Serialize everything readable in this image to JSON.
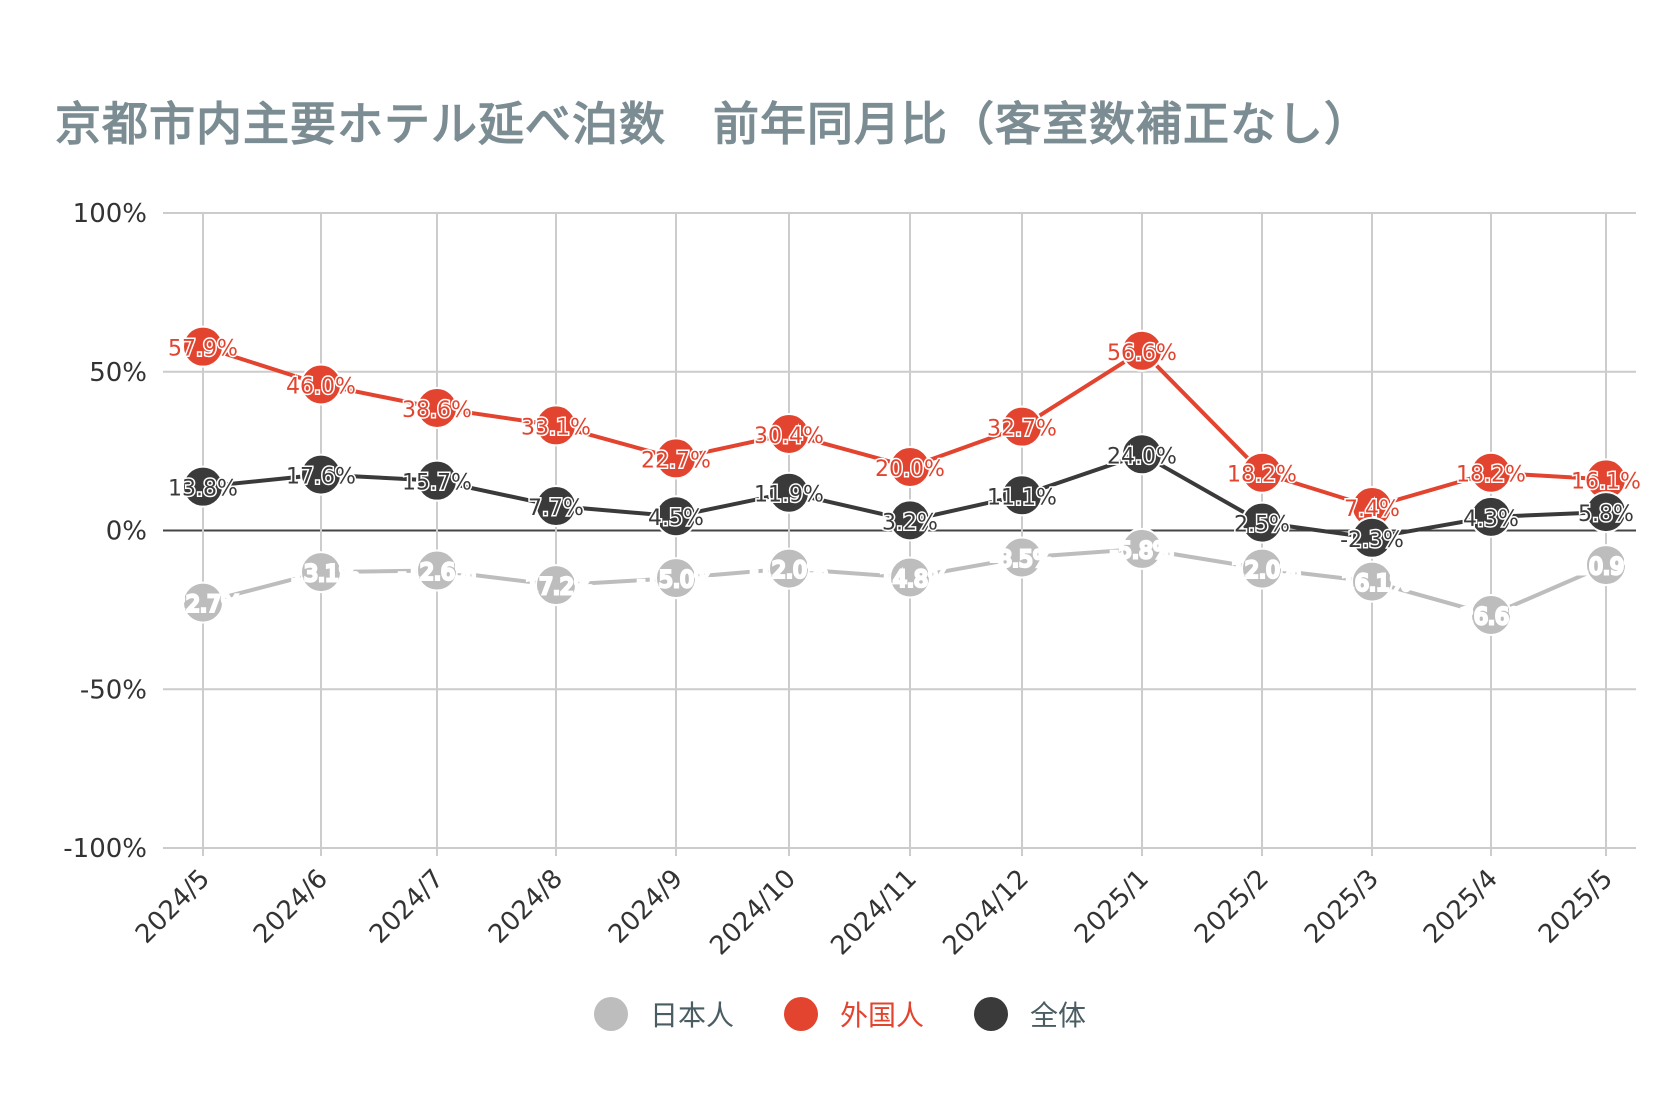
{
  "title": "京都市内主要ホテル延べ泊数　前年同月比（客室数補正なし）",
  "chart_data": {
    "type": "line",
    "categories": [
      "2024/5",
      "2024/6",
      "2024/7",
      "2024/8",
      "2024/9",
      "2024/10",
      "2024/11",
      "2024/12",
      "2025/1",
      "2025/2",
      "2025/3",
      "2025/4",
      "2025/5"
    ],
    "ylim": [
      -100,
      100
    ],
    "yticks": [
      100,
      50,
      0,
      -50,
      -100
    ],
    "ytick_labels": [
      "100%",
      "50%",
      "0%",
      "-50%",
      "-100%"
    ],
    "grid": true,
    "legend_position": "bottom",
    "series": [
      {
        "name": "日本人",
        "color": "#bdbdbd",
        "label_color": "#ffffff",
        "values": [
          -22.7,
          -13.1,
          -12.6,
          -17.2,
          -15.0,
          -12.0,
          -14.8,
          -8.5,
          -5.8,
          -12.0,
          -16.1,
          -26.6,
          -10.9
        ],
        "labels": [
          "-22.7%",
          "-13.1%",
          "-12.6%",
          "-17.2%",
          "-15.0%",
          "-12.0%",
          "-14.8%",
          "-8.5%",
          "-5.8%",
          "-12.0%",
          "-16.1%",
          "-26.6%",
          "-10.9%"
        ]
      },
      {
        "name": "外国人",
        "color": "#e2442f",
        "label_color": "#e2442f",
        "values": [
          57.9,
          46.0,
          38.6,
          33.1,
          22.7,
          30.4,
          20.0,
          32.7,
          56.6,
          18.2,
          7.4,
          18.2,
          16.1
        ],
        "labels": [
          "57.9%",
          "46.0%",
          "38.6%",
          "33.1%",
          "22.7%",
          "30.4%",
          "20.0%",
          "32.7%",
          "56.6%",
          "18.2%",
          "7.4%",
          "18.2%",
          "16.1%"
        ]
      },
      {
        "name": "全体",
        "color": "#3a3a3a",
        "label_color": "#3a3a3a",
        "values": [
          13.8,
          17.6,
          15.7,
          7.7,
          4.5,
          11.9,
          3.2,
          11.1,
          24.0,
          2.5,
          -2.3,
          4.3,
          5.8
        ],
        "labels": [
          "13.8%",
          "17.6%",
          "15.7%",
          "7.7%",
          "4.5%",
          "11.9%",
          "3.2%",
          "11.1%",
          "24.0%",
          "2.5%",
          "-2.3%",
          "4.3%",
          "5.8%"
        ]
      }
    ]
  },
  "colors": {
    "title": "#7b8d93",
    "grid": "#cccccc",
    "zero_line": "#444444",
    "axis_text": "#333333",
    "legend_text": "#4a5d63"
  }
}
